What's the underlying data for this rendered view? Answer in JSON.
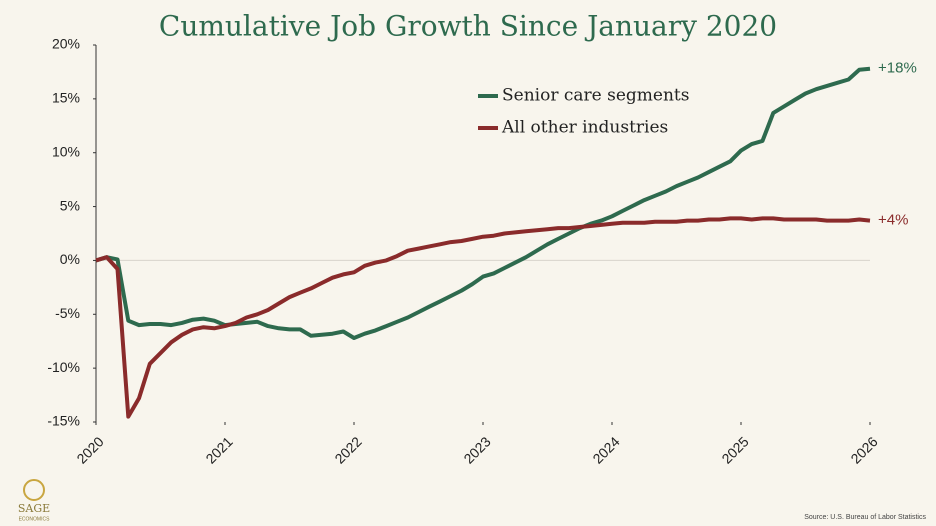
{
  "chart_data": {
    "type": "line",
    "title": "Cumulative Job Growth Since January 2020",
    "source": "Source: U.S. Bureau of Labor Statistics",
    "x": [
      2020,
      2020.083,
      2020.167,
      2020.25,
      2020.333,
      2020.417,
      2020.5,
      2020.583,
      2020.667,
      2020.75,
      2020.833,
      2020.917,
      2021,
      2021.083,
      2021.167,
      2021.25,
      2021.333,
      2021.417,
      2021.5,
      2021.583,
      2021.667,
      2021.75,
      2021.833,
      2021.917,
      2022,
      2022.083,
      2022.167,
      2022.25,
      2022.333,
      2022.417,
      2022.5,
      2022.583,
      2022.667,
      2022.75,
      2022.833,
      2022.917,
      2023,
      2023.083,
      2023.167,
      2023.25,
      2023.333,
      2023.417,
      2023.5,
      2023.583,
      2023.667,
      2023.75,
      2023.833,
      2023.917,
      2024,
      2024.083,
      2024.167,
      2024.25,
      2024.333,
      2024.417,
      2024.5,
      2024.583,
      2024.667,
      2024.75,
      2024.833,
      2024.917,
      2025,
      2025.083,
      2025.167,
      2025.25,
      2025.333,
      2025.417,
      2025.5,
      2025.583,
      2025.667,
      2025.75,
      2025.833,
      2025.917,
      2026
    ],
    "series": [
      {
        "name": "Senior care segments",
        "color": "#2e6a4e",
        "end_label": "+18%",
        "values": [
          0,
          0.3,
          0.1,
          -5.6,
          -6.0,
          -5.9,
          -5.9,
          -6.0,
          -5.8,
          -5.5,
          -5.4,
          -5.6,
          -6.0,
          -5.9,
          -5.8,
          -5.7,
          -6.1,
          -6.3,
          -6.4,
          -6.4,
          -7.0,
          -6.9,
          -6.8,
          -6.6,
          -7.2,
          -6.8,
          -6.5,
          -6.1,
          -5.7,
          -5.3,
          -4.8,
          -4.3,
          -3.8,
          -3.3,
          -2.8,
          -2.2,
          -1.5,
          -1.2,
          -0.7,
          -0.2,
          0.3,
          0.9,
          1.5,
          2.0,
          2.5,
          3.0,
          3.4,
          3.7,
          4.1,
          4.6,
          5.1,
          5.6,
          6.0,
          6.4,
          6.9,
          7.3,
          7.7,
          8.2,
          8.7,
          9.2,
          10.2,
          10.8,
          11.1,
          13.7,
          14.3,
          14.9,
          15.5,
          15.9,
          16.2,
          16.5,
          16.8,
          17.7,
          17.8
        ]
      },
      {
        "name": "All other industries",
        "color": "#8a2b2b",
        "end_label": "+4%",
        "values": [
          0,
          0.3,
          -0.8,
          -14.5,
          -12.8,
          -9.6,
          -8.6,
          -7.6,
          -6.9,
          -6.4,
          -6.2,
          -6.3,
          -6.1,
          -5.8,
          -5.3,
          -5.0,
          -4.6,
          -4.0,
          -3.4,
          -3.0,
          -2.6,
          -2.1,
          -1.6,
          -1.3,
          -1.1,
          -0.5,
          -0.2,
          0.0,
          0.4,
          0.9,
          1.1,
          1.3,
          1.5,
          1.7,
          1.8,
          2.0,
          2.2,
          2.3,
          2.5,
          2.6,
          2.7,
          2.8,
          2.9,
          3.0,
          3.0,
          3.1,
          3.2,
          3.3,
          3.4,
          3.5,
          3.5,
          3.5,
          3.6,
          3.6,
          3.6,
          3.7,
          3.7,
          3.8,
          3.8,
          3.9,
          3.9,
          3.8,
          3.9,
          3.9,
          3.8,
          3.8,
          3.8,
          3.8,
          3.7,
          3.7,
          3.7,
          3.8,
          3.7
        ]
      }
    ],
    "xlim": [
      2020,
      2026
    ],
    "xticks": [
      2020,
      2021,
      2022,
      2023,
      2024,
      2025,
      2026
    ],
    "ylim": [
      -15,
      20
    ],
    "yticks": [
      {
        "value": -15,
        "label": "-15%"
      },
      {
        "value": -10,
        "label": "-10%"
      },
      {
        "value": -5,
        "label": "-5%"
      },
      {
        "value": 0,
        "label": "0%"
      },
      {
        "value": 5,
        "label": "5%"
      },
      {
        "value": 10,
        "label": "10%"
      },
      {
        "value": 15,
        "label": "15%"
      },
      {
        "value": 20,
        "label": "20%"
      }
    ]
  },
  "logo": {
    "name": "SAGE",
    "tagline": "ECONOMICS"
  }
}
